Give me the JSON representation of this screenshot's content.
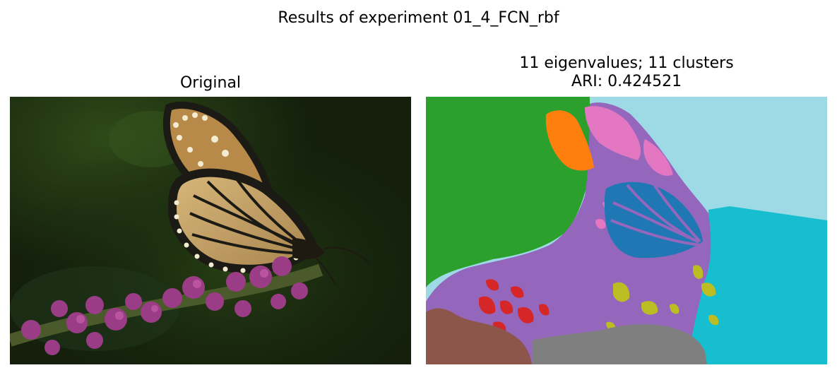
{
  "figure": {
    "suptitle": "Results of experiment 01_4_FCN_rbf"
  },
  "left_panel": {
    "title": "Original"
  },
  "right_panel": {
    "title_line1": "11 eigenvalues; 11 clusters",
    "title_line2": "ARI: 0.424521"
  },
  "colors": {
    "background_dark": "#1a2410",
    "foliage": "#223a12",
    "wing_orange": "#c9a46a",
    "wing_vein": "#1c1a14",
    "flower": "#9b3d86",
    "seg_green": "#2ca02c",
    "seg_orange": "#ff7f0e",
    "seg_pink": "#e377c2",
    "seg_lightblue": "#9edae5",
    "seg_purple": "#9467bd",
    "seg_blue": "#1f77b4",
    "seg_cyan": "#17becf",
    "seg_olive": "#bcbd22",
    "seg_red": "#d62728",
    "seg_brown": "#8c564b",
    "seg_gray": "#7f7f7f"
  }
}
